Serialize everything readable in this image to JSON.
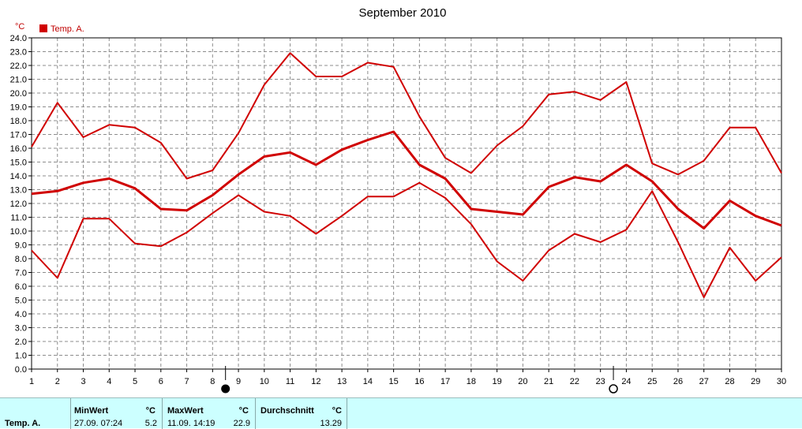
{
  "chart_data": {
    "type": "line",
    "title": "September 2010",
    "unit_label": "°C",
    "x": [
      1,
      2,
      3,
      4,
      5,
      6,
      7,
      8,
      9,
      10,
      11,
      12,
      13,
      14,
      15,
      16,
      17,
      18,
      19,
      20,
      21,
      22,
      23,
      24,
      25,
      26,
      27,
      28,
      29,
      30
    ],
    "xlim": [
      1,
      30
    ],
    "ylim": [
      0,
      24
    ],
    "yticks": [
      "0.0",
      "1.0",
      "2.0",
      "3.0",
      "4.0",
      "5.0",
      "6.0",
      "7.0",
      "8.0",
      "9.0",
      "10.0",
      "11.0",
      "12.0",
      "13.0",
      "14.0",
      "15.0",
      "16.0",
      "17.0",
      "18.0",
      "19.0",
      "20.0",
      "21.0",
      "22.0",
      "23.0",
      "24.0"
    ],
    "grid": true,
    "legend": {
      "label": "Temp. A.",
      "color": "#d00000",
      "placement": "top-left"
    },
    "series": [
      {
        "role": "max",
        "color": "#d00000",
        "values": [
          16.1,
          19.3,
          16.8,
          17.7,
          17.5,
          16.4,
          13.8,
          14.4,
          17.1,
          20.6,
          22.9,
          21.2,
          21.2,
          22.2,
          21.9,
          18.3,
          15.3,
          14.2,
          16.2,
          17.6,
          19.9,
          20.1,
          19.5,
          20.8,
          14.9,
          14.1,
          15.1,
          17.5,
          17.5,
          14.2
        ]
      },
      {
        "role": "avg",
        "color": "#d00000",
        "values": [
          12.7,
          12.9,
          13.5,
          13.8,
          13.1,
          11.6,
          11.5,
          12.6,
          14.1,
          15.4,
          15.7,
          14.8,
          15.9,
          16.6,
          17.2,
          14.8,
          13.8,
          11.6,
          11.4,
          11.2,
          13.2,
          13.9,
          13.6,
          14.8,
          13.6,
          11.6,
          10.2,
          12.2,
          11.1,
          10.4
        ]
      },
      {
        "role": "min",
        "color": "#d00000",
        "values": [
          8.6,
          6.6,
          10.9,
          10.9,
          9.1,
          8.9,
          9.9,
          11.3,
          12.6,
          11.4,
          11.1,
          9.8,
          11.1,
          12.5,
          12.5,
          13.5,
          12.4,
          10.5,
          7.8,
          6.4,
          8.6,
          9.8,
          9.2,
          10.1,
          12.9,
          9.2,
          5.2,
          8.8,
          6.4,
          8.1
        ]
      }
    ],
    "moon_phases": [
      {
        "day": 8.5,
        "phase": "new-moon",
        "icon": "filled-circle"
      },
      {
        "day": 23.5,
        "phase": "full-moon",
        "icon": "open-circle"
      }
    ]
  },
  "stats": {
    "row_label": "Temp. A.",
    "min": {
      "header": "MinWert",
      "unit": "°C",
      "when": "27.09.  07:24",
      "value": "5.2"
    },
    "max": {
      "header": "MaxWert",
      "unit": "°C",
      "when": "11.09.  14:19",
      "value": "22.9"
    },
    "avg": {
      "header": "Durchschnitt",
      "unit": "°C",
      "value": "13.29"
    }
  }
}
